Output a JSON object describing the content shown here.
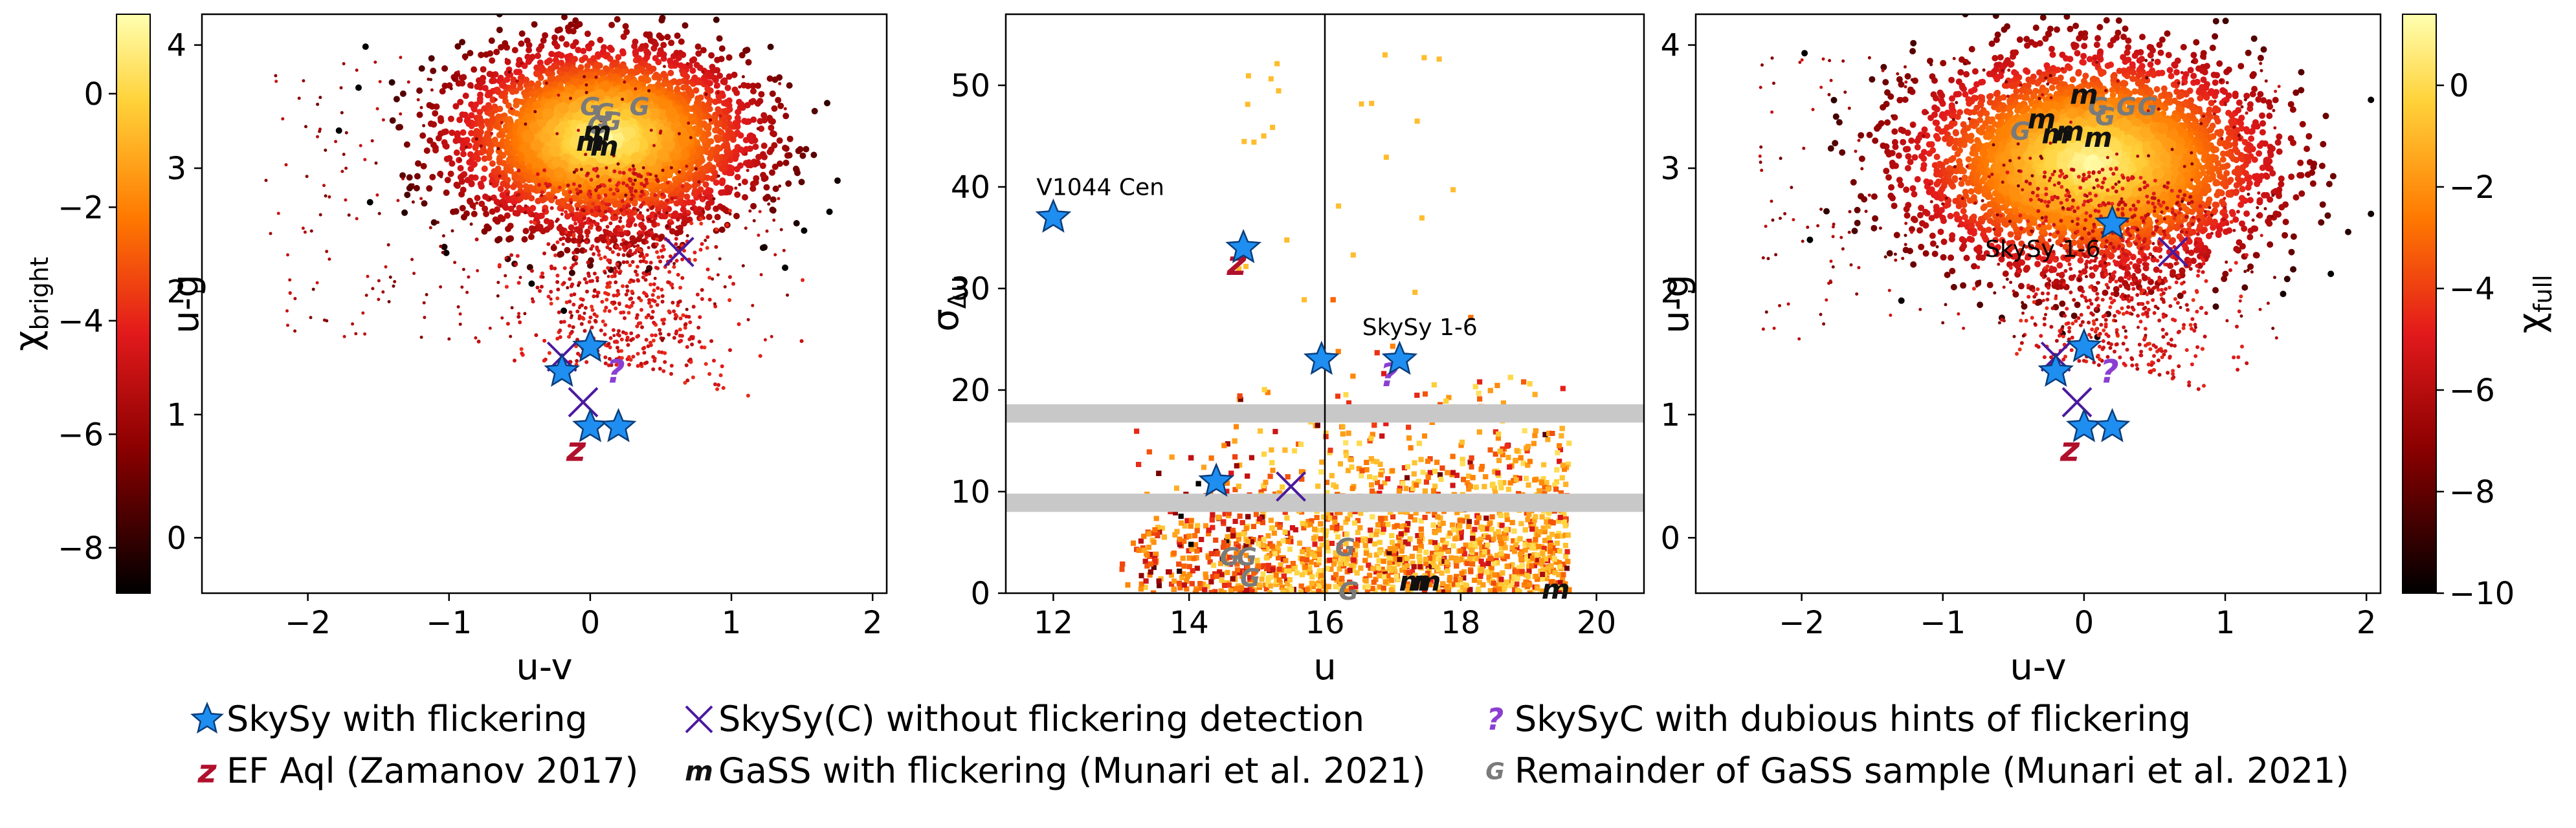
{
  "colors": {
    "star_fill": "#1f8ef1",
    "cross": "#4b1a9e",
    "question": "#8a3fd1",
    "efaql": "#b0102c",
    "gass_flicker": "#111111",
    "gass_rest": "#7a7a7a",
    "band": "#c8c8c8"
  },
  "chart_data": [
    {
      "id": "left",
      "type": "scatter",
      "xlabel": "u-v",
      "ylabel": "u-g",
      "xlim": [
        -2.75,
        2.1
      ],
      "ylim": [
        -0.45,
        4.25
      ],
      "xticks": [
        "−2",
        "−1",
        "0",
        "1",
        "2"
      ],
      "xtick_values": [
        -2,
        -1,
        0,
        1,
        2
      ],
      "yticks": [
        "0",
        "1",
        "2",
        "3",
        "4"
      ],
      "ytick_values": [
        0,
        1,
        2,
        3,
        4
      ],
      "colorbar": {
        "label": "χbright",
        "label_main": "χ",
        "label_sub": "bright",
        "range": [
          -8.8,
          1.4
        ],
        "ticks": [
          "−8",
          "−6",
          "−4",
          "−2",
          "0"
        ],
        "tick_values": [
          -8,
          -6,
          -4,
          -2,
          0
        ]
      },
      "density": {
        "center": [
          0.1,
          3.25
        ],
        "spread": [
          0.5,
          0.35
        ]
      },
      "skysy_flickering": [
        [
          0.0,
          1.55
        ],
        [
          -0.2,
          1.35
        ],
        [
          0.0,
          0.9
        ],
        [
          0.2,
          0.9
        ]
      ],
      "skysy_no_flicker": [
        [
          -0.2,
          1.47
        ],
        [
          -0.05,
          1.1
        ],
        [
          0.63,
          2.32
        ]
      ],
      "skysyc_dubious": [
        [
          0.18,
          1.35
        ]
      ],
      "ef_aql": [
        [
          -0.1,
          0.72
        ]
      ],
      "gass_flickering": [
        [
          0.0,
          3.22
        ],
        [
          0.1,
          3.18
        ],
        [
          0.05,
          3.3
        ]
      ],
      "gass_remainder": [
        [
          0.0,
          3.5
        ],
        [
          0.1,
          3.45
        ],
        [
          0.35,
          3.5
        ],
        [
          0.05,
          3.35
        ],
        [
          0.15,
          3.38
        ]
      ],
      "annotations": []
    },
    {
      "id": "middle",
      "type": "scatter",
      "xlabel": "u",
      "ylabel_main": "σ",
      "ylabel_sub": "Δu",
      "xlim": [
        11.3,
        20.7
      ],
      "ylim": [
        0,
        57
      ],
      "xticks": [
        "12",
        "14",
        "16",
        "18",
        "20"
      ],
      "xtick_values": [
        12,
        14,
        16,
        18,
        20
      ],
      "yticks": [
        "0",
        "10",
        "20",
        "30",
        "40",
        "50"
      ],
      "ytick_values": [
        0,
        10,
        20,
        30,
        40,
        50
      ],
      "vline": 16.0,
      "hbands": [
        [
          16.8,
          18.6
        ],
        [
          8.0,
          9.8
        ]
      ],
      "skysy_flickering": [
        [
          12.0,
          37.0
        ],
        [
          14.8,
          34.0
        ],
        [
          15.95,
          23.0
        ],
        [
          17.1,
          23.0
        ],
        [
          14.4,
          11.0
        ]
      ],
      "skysy_no_flicker": [
        [
          15.5,
          10.5
        ]
      ],
      "skysyc_dubious": [
        [
          16.95,
          21.5
        ]
      ],
      "ef_aql": [
        [
          14.7,
          32.5
        ]
      ],
      "gass_flickering": [
        [
          17.3,
          1.2
        ],
        [
          17.5,
          1.2
        ],
        [
          19.4,
          0.4
        ]
      ],
      "gass_remainder": [
        [
          14.6,
          3.6
        ],
        [
          14.85,
          3.6
        ],
        [
          14.9,
          1.5
        ],
        [
          16.3,
          4.5
        ],
        [
          16.35,
          0.2
        ]
      ],
      "annotations": [
        {
          "text": "V1044 Cen",
          "x": 11.75,
          "y": 39.2
        },
        {
          "text": "SkySy 1-6",
          "x": 16.55,
          "y": 25.4
        }
      ]
    },
    {
      "id": "right",
      "type": "scatter",
      "xlabel": "u-v",
      "ylabel": "u-g",
      "xlim": [
        -2.75,
        2.1
      ],
      "ylim": [
        -0.45,
        4.25
      ],
      "xticks": [
        "−2",
        "−1",
        "0",
        "1",
        "2"
      ],
      "xtick_values": [
        -2,
        -1,
        0,
        1,
        2
      ],
      "yticks": [
        "0",
        "1",
        "2",
        "3",
        "4"
      ],
      "ytick_values": [
        0,
        1,
        2,
        3,
        4
      ],
      "colorbar": {
        "label": "χfull",
        "label_main": "χ",
        "label_sub": "full",
        "range": [
          -10.0,
          1.4
        ],
        "ticks": [
          "−10",
          "−8",
          "−6",
          "−4",
          "−2",
          "0"
        ],
        "tick_values": [
          -10,
          -8,
          -6,
          -4,
          -2,
          0
        ]
      },
      "density": {
        "center": [
          0.05,
          3.05
        ],
        "spread": [
          0.6,
          0.42
        ]
      },
      "skysy_flickering": [
        [
          0.2,
          2.55
        ],
        [
          0.0,
          1.55
        ],
        [
          -0.2,
          1.35
        ],
        [
          0.0,
          0.9
        ],
        [
          0.2,
          0.9
        ]
      ],
      "skysy_no_flicker": [
        [
          -0.2,
          1.47
        ],
        [
          -0.05,
          1.1
        ],
        [
          0.63,
          2.32
        ]
      ],
      "skysyc_dubious": [
        [
          0.18,
          1.35
        ]
      ],
      "ef_aql": [
        [
          -0.1,
          0.72
        ]
      ],
      "gass_flickering": [
        [
          -0.3,
          3.4
        ],
        [
          -0.1,
          3.3
        ],
        [
          0.0,
          3.6
        ],
        [
          0.1,
          3.25
        ],
        [
          -0.2,
          3.28
        ]
      ],
      "gass_remainder": [
        [
          0.1,
          3.5
        ],
        [
          0.3,
          3.5
        ],
        [
          0.45,
          3.5
        ],
        [
          -0.45,
          3.3
        ],
        [
          0.15,
          3.42
        ]
      ],
      "annotations": [
        {
          "text": "SkySy 1-6",
          "x": -0.7,
          "y": 2.28
        }
      ]
    }
  ],
  "legend": [
    {
      "marker": "star",
      "label": "SkySy with flickering"
    },
    {
      "marker": "cross",
      "label": "SkySy(C) without flickering detection"
    },
    {
      "marker": "question",
      "glyph": "?",
      "label": "SkySyC with dubious hints of flickering"
    },
    {
      "marker": "efaql",
      "glyph": "z",
      "label": "EF Aql (Zamanov 2017)"
    },
    {
      "marker": "gass_flicker",
      "glyph": "m",
      "label": "GaSS with flickering (Munari et al. 2021)"
    },
    {
      "marker": "gass_rest",
      "glyph": "G",
      "label": "Remainder of GaSS sample (Munari et al. 2021)"
    }
  ]
}
